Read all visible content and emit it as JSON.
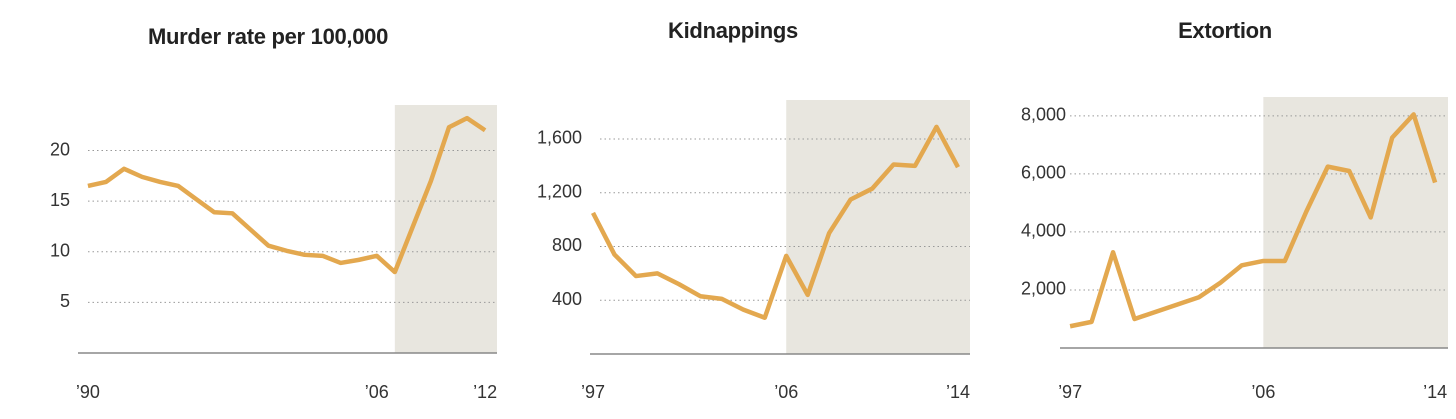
{
  "chart_data": [
    {
      "type": "line",
      "title": "Murder rate per 100,000",
      "x": [
        1990,
        1991,
        1992,
        1993,
        1994,
        1995,
        1996,
        1997,
        1998,
        1999,
        2000,
        2001,
        2002,
        2003,
        2004,
        2005,
        2006,
        2007,
        2008,
        2009,
        2010,
        2011,
        2012
      ],
      "series": [
        {
          "color": "#e3a84f",
          "values": [
            16.5,
            16.9,
            18.2,
            17.4,
            16.9,
            16.5,
            15.2,
            13.9,
            13.8,
            12.2,
            10.6,
            10.1,
            9.7,
            9.6,
            8.9,
            9.2,
            9.6,
            8.0,
            12.5,
            17.0,
            22.3,
            23.2,
            22.0
          ]
        }
      ],
      "xlim": [
        1989.45,
        2012.66
      ],
      "ylim": [
        0,
        24.5
      ],
      "xticks": [
        {
          "value": 1990,
          "label": "’90"
        },
        {
          "value": 2006,
          "label": "’06"
        },
        {
          "value": 2012,
          "label": "’12"
        }
      ],
      "yticks": [
        5,
        10,
        15,
        20
      ],
      "grid": true,
      "shade": [
        2007,
        2012.66
      ],
      "shade_color": "#e8e6df"
    },
    {
      "type": "line",
      "title": "Kidnappings",
      "x": [
        1997,
        1998,
        1999,
        2000,
        2001,
        2002,
        2003,
        2004,
        2005,
        2006,
        2007,
        2008,
        2009,
        2010,
        2011,
        2012,
        2013,
        2014
      ],
      "series": [
        {
          "color": "#e3a84f",
          "values": [
            1050,
            740,
            580,
            600,
            520,
            430,
            410,
            330,
            270,
            730,
            440,
            900,
            1150,
            1230,
            1410,
            1400,
            1690,
            1390
          ]
        }
      ],
      "xlim": [
        1996.86,
        2014.56
      ],
      "ylim": [
        0,
        1890
      ],
      "xticks": [
        {
          "value": 1997,
          "label": "’97"
        },
        {
          "value": 2006,
          "label": "’06"
        },
        {
          "value": 2014,
          "label": "’14"
        }
      ],
      "yticks": [
        400,
        800,
        {
          "value": 1200,
          "label": "1,200"
        },
        {
          "value": 1600,
          "label": "1,600"
        }
      ],
      "grid": true,
      "shade": [
        2006,
        2014.56
      ],
      "shade_color": "#e8e6df"
    },
    {
      "type": "line",
      "title": "Extortion",
      "x": [
        1997,
        1998,
        1999,
        2000,
        2001,
        2002,
        2003,
        2004,
        2005,
        2006,
        2007,
        2008,
        2009,
        2010,
        2011,
        2012,
        2013,
        2014
      ],
      "series": [
        {
          "color": "#e3a84f",
          "values": [
            750,
            900,
            3300,
            1000,
            1250,
            1500,
            1750,
            2250,
            2850,
            3000,
            3000,
            4700,
            6250,
            6100,
            4500,
            7250,
            8050,
            5700
          ]
        }
      ],
      "xlim": [
        1996.53,
        2014.6
      ],
      "ylim": [
        0,
        8650
      ],
      "xticks": [
        {
          "value": 1997,
          "label": "’97"
        },
        {
          "value": 2006,
          "label": "’06"
        },
        {
          "value": 2014,
          "label": "’14"
        }
      ],
      "yticks": [
        {
          "value": 2000,
          "label": "2,000"
        },
        {
          "value": 4000,
          "label": "4,000"
        },
        {
          "value": 6000,
          "label": "6,000"
        },
        {
          "value": 8000,
          "label": "8,000"
        }
      ],
      "grid": true,
      "shade": [
        2006,
        2014.6
      ],
      "shade_color": "#e8e6df"
    }
  ]
}
